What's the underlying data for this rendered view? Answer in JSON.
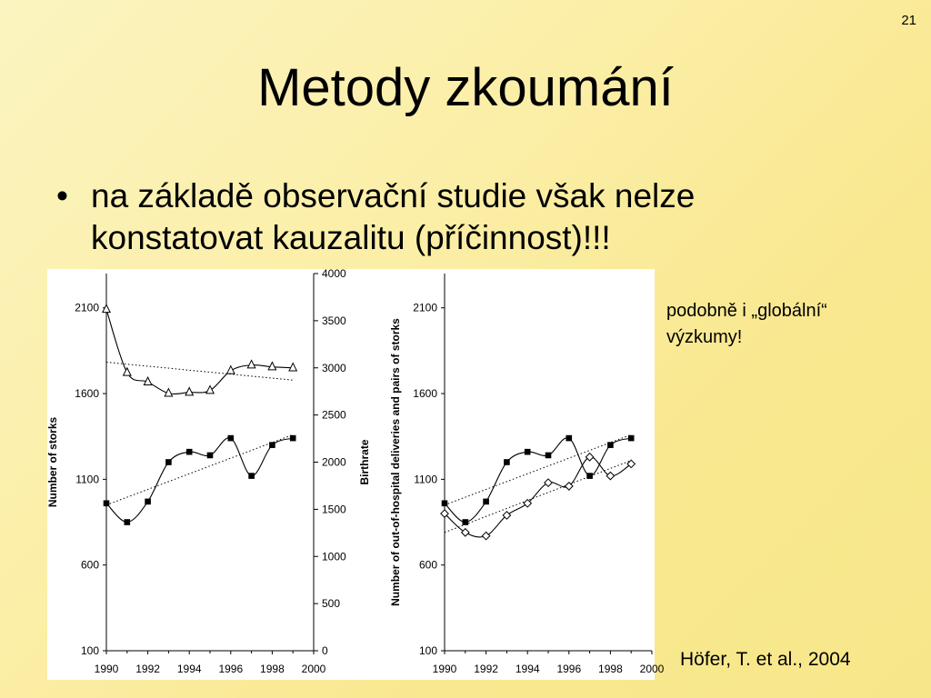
{
  "slide_number": "21",
  "title": "Metody zkoumání",
  "bullet": {
    "marker": "•",
    "text": "na základě observační studie však nelze konstatovat kauzalitu (příčinnost)!!!"
  },
  "side_note": {
    "line1": "podobně i „globální“",
    "line2": "výzkumy!"
  },
  "citation": "Höfer, T. et al., 2004",
  "chart_data": [
    {
      "type": "line",
      "x_ticks": [
        "1990",
        "1992",
        "1994",
        "1996",
        "1998",
        "2000"
      ],
      "xlim": [
        1990,
        2000
      ],
      "ylabel": "Number of storks",
      "y_ticks": [
        "100",
        "600",
        "1100",
        "1600",
        "2100"
      ],
      "ylim": [
        100,
        2300
      ],
      "y2label": "Birthrate",
      "y2_ticks": [
        "0",
        "500",
        "1000",
        "1500",
        "2000",
        "2500",
        "3000",
        "3500",
        "4000"
      ],
      "y2lim": [
        0,
        4000
      ],
      "series": [
        {
          "marker": "triangle-open",
          "axis": "right",
          "x": [
            1990,
            1991,
            1992,
            1993,
            1994,
            1995,
            1996,
            1997,
            1998,
            1999
          ],
          "y": [
            3620,
            2950,
            2850,
            2730,
            2740,
            2760,
            2970,
            3030,
            3010,
            3000
          ],
          "trend": [
            [
              1990,
              3060
            ],
            [
              1999,
              2870
            ]
          ]
        },
        {
          "marker": "square-filled",
          "axis": "left",
          "x": [
            1990,
            1991,
            1992,
            1993,
            1994,
            1995,
            1996,
            1997,
            1998,
            1999
          ],
          "y": [
            960,
            850,
            970,
            1200,
            1260,
            1240,
            1340,
            1120,
            1300,
            1340
          ],
          "trend": [
            [
              1990,
              950
            ],
            [
              1999,
              1360
            ]
          ]
        }
      ]
    },
    {
      "type": "line",
      "x_ticks": [
        "1990",
        "1992",
        "1994",
        "1996",
        "1998",
        "2000"
      ],
      "xlim": [
        1990,
        2000
      ],
      "ylabel": "Number of out-of-hospital deliveries and pairs of storks",
      "y_ticks": [
        "100",
        "600",
        "1100",
        "1600",
        "2100"
      ],
      "ylim": [
        100,
        2300
      ],
      "series": [
        {
          "marker": "square-filled",
          "x": [
            1990,
            1991,
            1992,
            1993,
            1994,
            1995,
            1996,
            1997,
            1998,
            1999
          ],
          "y": [
            960,
            850,
            970,
            1200,
            1260,
            1240,
            1340,
            1120,
            1300,
            1340
          ],
          "trend": [
            [
              1990,
              950
            ],
            [
              1999,
              1360
            ]
          ]
        },
        {
          "marker": "diamond-open",
          "x": [
            1990,
            1991,
            1992,
            1993,
            1994,
            1995,
            1996,
            1997,
            1998,
            1999
          ],
          "y": [
            900,
            790,
            770,
            890,
            960,
            1080,
            1060,
            1230,
            1120,
            1190
          ],
          "trend": [
            [
              1990,
              790
            ],
            [
              1999,
              1210
            ]
          ]
        }
      ]
    }
  ]
}
